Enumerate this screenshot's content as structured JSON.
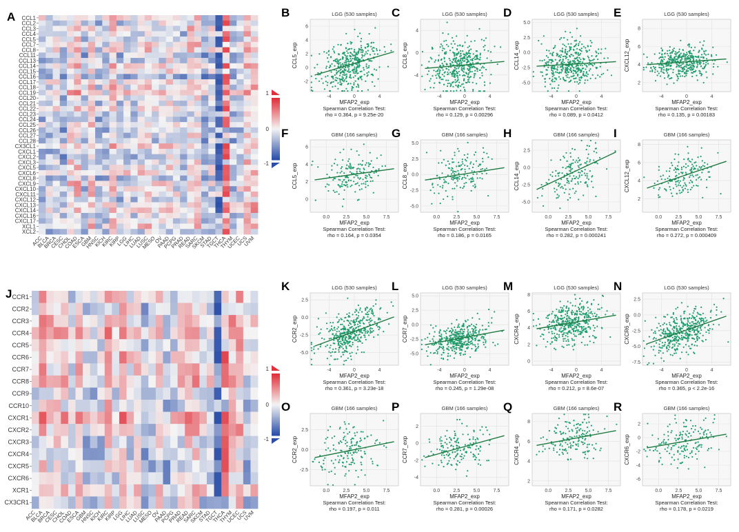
{
  "chart_data": [
    {
      "type": "heatmap",
      "panel": "A",
      "rows": [
        "CCL1",
        "CCL2",
        "CCL3",
        "CCL4",
        "CCL5",
        "CCL7",
        "CCL8",
        "CCL11",
        "CCL13",
        "CCL14",
        "CCL15",
        "CCL16",
        "CCL17",
        "CCL18",
        "CCL19",
        "CCL20",
        "CCL21",
        "CCL22",
        "CCL23",
        "CCL24",
        "CCL25",
        "CCL26",
        "CCL27",
        "CCL28",
        "CX3CL1",
        "CXCL1",
        "CXCL2",
        "CXCL3",
        "CXCL5",
        "CXCL6",
        "CXCL8",
        "CXCL9",
        "CXCL10",
        "CXCL11",
        "CXCL12",
        "CXCL13",
        "CXCL14",
        "CXCL16",
        "CXCL17",
        "XCL1",
        "XCL2"
      ],
      "columns": [
        "ACC",
        "BLCA",
        "BRCA",
        "CESC",
        "CHOL",
        "COAD",
        "ESCA",
        "GBM",
        "HNSC",
        "KICH",
        "KIRC",
        "KIRP",
        "LGG",
        "LIHC",
        "LUAD",
        "LUSC",
        "MESO",
        "OV",
        "PAAD",
        "PCPG",
        "PRAD",
        "READ",
        "SARC",
        "SKCM",
        "STAD",
        "TGCT",
        "THCA",
        "THYM",
        "UCEC",
        "UCS",
        "UVM"
      ],
      "color_range": [
        -1,
        1
      ],
      "legend_ticks": [
        "1",
        "0",
        "-1"
      ]
    },
    {
      "type": "heatmap",
      "panel": "J",
      "rows": [
        "CCR1",
        "CCR2",
        "CCR3",
        "CCR4",
        "CCR5",
        "CCR6",
        "CCR7",
        "CCR8",
        "CCR9",
        "CCR10",
        "CXCR1",
        "CXCR2",
        "CXCR3",
        "CXCR4",
        "CXCR5",
        "CXCR6",
        "XCR1",
        "CX3CR1"
      ],
      "columns": [
        "ACC",
        "BLCA",
        "BRCA",
        "CESC",
        "CHOL",
        "COAD",
        "ESCA",
        "GBM",
        "HNSC",
        "KICH",
        "KIRC",
        "KIRP",
        "LGG",
        "LIHC",
        "LUAD",
        "LUSC",
        "MESO",
        "OV",
        "PAAD",
        "PCPG",
        "PRAD",
        "READ",
        "SARC",
        "SKCM",
        "STAD",
        "TGCT",
        "THCA",
        "THYM",
        "UCEC",
        "UCS",
        "UVM"
      ],
      "color_range": [
        -1,
        1
      ],
      "legend_ticks": [
        "1",
        "0",
        "-1"
      ]
    },
    {
      "type": "scatter",
      "panel": "B",
      "title": "LGG (530 samples)",
      "xlabel": "MFAP2_exp",
      "ylabel": "CCL5_exp",
      "xticks": [
        "-4",
        "0",
        "4"
      ],
      "yticks": [
        "-2",
        "0",
        "2",
        "4",
        "6"
      ],
      "xlim": [
        -7,
        7
      ],
      "ylim": [
        -3.5,
        7
      ],
      "n": 530,
      "slope": 0.27,
      "intercept": 0.6,
      "spread": 1.7,
      "test": "Spearman Correlation Test:",
      "stat": "rho = 0.364, p = 9.25e-20"
    },
    {
      "type": "scatter",
      "panel": "C",
      "title": "LGG (530 samples)",
      "xlabel": "MFAP2_exp",
      "ylabel": "CCL8_exp",
      "xticks": [
        "-4",
        "0",
        "4"
      ],
      "yticks": [
        "-4",
        "0",
        "4"
      ],
      "xlim": [
        -7,
        7
      ],
      "ylim": [
        -7,
        6
      ],
      "n": 530,
      "slope": 0.1,
      "intercept": -2.2,
      "spread": 2.3,
      "test": "Spearman Correlation Test:",
      "stat": "rho = 0.129, p = 0.00296"
    },
    {
      "type": "scatter",
      "panel": "D",
      "title": "LGG (530 samples)",
      "xlabel": "MFAP2_exp",
      "ylabel": "CCL14_exp",
      "xticks": [
        "-4",
        "0",
        "4"
      ],
      "yticks": [
        "-5.0",
        "-2.5",
        "0.0",
        "2.5",
        "5.0"
      ],
      "xlim": [
        -7,
        7
      ],
      "ylim": [
        -6.5,
        5.5
      ],
      "n": 530,
      "slope": 0.06,
      "intercept": -1.9,
      "spread": 2.0,
      "test": "Spearman Correlation Test:",
      "stat": "rho = 0.089, p = 0.0412"
    },
    {
      "type": "scatter",
      "panel": "E",
      "title": "LGG (530 samples)",
      "xlabel": "MFAP2_exp",
      "ylabel": "CXCL12_exp",
      "xticks": [
        "-4",
        "0",
        "4"
      ],
      "yticks": [
        "2",
        "4",
        "6",
        "8"
      ],
      "xlim": [
        -7,
        7
      ],
      "ylim": [
        1,
        9
      ],
      "n": 530,
      "slope": 0.05,
      "intercept": 4.3,
      "spread": 0.9,
      "test": "Spearman Correlation Test:",
      "stat": "rho = 0.135, p = 0.00183"
    },
    {
      "type": "scatter",
      "panel": "F",
      "title": "GBM (166 samples)",
      "xlabel": "MFAP2_exp",
      "ylabel": "CCL5_exp",
      "xticks": [
        "0.0",
        "2.5",
        "5.0",
        "7.5"
      ],
      "yticks": [
        "0",
        "2",
        "4",
        "6"
      ],
      "xlim": [
        -2,
        9
      ],
      "ylim": [
        -1.5,
        6.8
      ],
      "n": 166,
      "slope": 0.13,
      "intercept": 2.4,
      "spread": 1.2,
      "test": "Spearman Correlation Test:",
      "stat": "rho = 0.164, p = 0.0354"
    },
    {
      "type": "scatter",
      "panel": "G",
      "title": "GBM (166 samples)",
      "xlabel": "MFAP2_exp",
      "ylabel": "CCL8_exp",
      "xticks": [
        "0.0",
        "2.5",
        "5.0",
        "7.5"
      ],
      "yticks": [
        "-5.0",
        "-2.5",
        "0.0",
        "2.5",
        "5.0"
      ],
      "xlim": [
        -2,
        9
      ],
      "ylim": [
        -6,
        5.5
      ],
      "n": 166,
      "slope": 0.2,
      "intercept": -0.6,
      "spread": 2.0,
      "test": "Spearman Correlation Test:",
      "stat": "rho = 0.186, p = 0.0165"
    },
    {
      "type": "scatter",
      "panel": "H",
      "title": "GBM (166 samples)",
      "xlabel": "MFAP2_exp",
      "ylabel": "CCL14_exp",
      "xticks": [
        "0.0",
        "2.5",
        "5.0",
        "7.5"
      ],
      "yticks": [
        "-5.0",
        "-2.5",
        "0.0",
        "2.5"
      ],
      "xlim": [
        -2,
        9
      ],
      "ylim": [
        -6.5,
        4
      ],
      "n": 166,
      "slope": 0.55,
      "intercept": -2.4,
      "spread": 1.8,
      "test": "Spearman Correlation Test:",
      "stat": "rho = 0.282, p = 0.000241"
    },
    {
      "type": "scatter",
      "panel": "I",
      "title": "GBM (166 samples)",
      "xlabel": "MFAP2_exp",
      "ylabel": "CXCL12_exp",
      "xticks": [
        "0.0",
        "2.5",
        "5.0",
        "7.5"
      ],
      "yticks": [
        "2",
        "4",
        "6",
        "8"
      ],
      "xlim": [
        -2,
        9
      ],
      "ylim": [
        0.5,
        8.5
      ],
      "n": 166,
      "slope": 0.3,
      "intercept": 3.6,
      "spread": 1.1,
      "test": "Spearman Correlation Test:",
      "stat": "rho = 0.272, p = 0.000409"
    },
    {
      "type": "scatter",
      "panel": "K",
      "title": "LGG (530 samples)",
      "xlabel": "MFAP2_exp",
      "ylabel": "CCR2_exp",
      "xticks": [
        "-4",
        "0",
        "4"
      ],
      "yticks": [
        "-5.0",
        "-2.5",
        "0.0",
        "2.5"
      ],
      "xlim": [
        -7,
        7
      ],
      "ylim": [
        -6.8,
        3.5
      ],
      "n": 530,
      "slope": 0.33,
      "intercept": -2.0,
      "spread": 1.6,
      "test": "Spearman Correlation Test:",
      "stat": "rho = 0.361, p = 3.23e-18"
    },
    {
      "type": "scatter",
      "panel": "L",
      "title": "LGG (530 samples)",
      "xlabel": "MFAP2_exp",
      "ylabel": "CCR7_exp",
      "xticks": [
        "-4",
        "0",
        "4"
      ],
      "yticks": [
        "-5.0",
        "-2.5",
        "0.0",
        "2.5",
        "5.0"
      ],
      "xlim": [
        -7,
        7
      ],
      "ylim": [
        -7,
        5.5
      ],
      "n": 530,
      "slope": 0.2,
      "intercept": -2.2,
      "spread": 1.4,
      "test": "Spearman Correlation Test:",
      "stat": "rho = 0.245, p = 1.29e-08"
    },
    {
      "type": "scatter",
      "panel": "M",
      "title": "LGG (530 samples)",
      "xlabel": "MFAP2_exp",
      "ylabel": "CXCR4_exp",
      "xticks": [
        "-4",
        "0",
        "4"
      ],
      "yticks": [
        "0",
        "2",
        "4",
        "6",
        "8"
      ],
      "xlim": [
        -7,
        7
      ],
      "ylim": [
        -0.5,
        8.2
      ],
      "n": 530,
      "slope": 0.13,
      "intercept": 4.7,
      "spread": 1.3,
      "test": "Spearman Correlation Test:",
      "stat": "rho = 0.212, p = 8.6e-07"
    },
    {
      "type": "scatter",
      "panel": "N",
      "title": "LGG (530 samples)",
      "xlabel": "MFAP2_exp",
      "ylabel": "CXCR6_exp",
      "xticks": [
        "-4",
        "0",
        "4"
      ],
      "yticks": [
        "-7.5",
        "-5.0",
        "-2.5",
        "0.0",
        "2.5"
      ],
      "xlim": [
        -7,
        7
      ],
      "ylim": [
        -8,
        3.5
      ],
      "n": 530,
      "slope": 0.35,
      "intercept": -2.4,
      "spread": 1.6,
      "test": "Spearman Correlation Test:",
      "stat": "rho = 0.365, p < 2.2e-16"
    },
    {
      "type": "scatter",
      "panel": "O",
      "title": "GBM (166 samples)",
      "xlabel": "MFAP2_exp",
      "ylabel": "CCR2_exp",
      "xticks": [
        "0.0",
        "2.5",
        "5.0",
        "7.5"
      ],
      "yticks": [
        "-2.5",
        "0.0",
        "2.5"
      ],
      "xlim": [
        -2,
        9
      ],
      "ylim": [
        -4.5,
        4.5
      ],
      "n": 166,
      "slope": 0.2,
      "intercept": -0.7,
      "spread": 1.5,
      "test": "Spearman Correlation Test:",
      "stat": "rho = 0.197, p = 0.011"
    },
    {
      "type": "scatter",
      "panel": "P",
      "title": "GBM (166 samples)",
      "xlabel": "MFAP2_exp",
      "ylabel": "CCR7_exp",
      "xticks": [
        "0.0",
        "2.5",
        "5.0",
        "7.5"
      ],
      "yticks": [
        "-4",
        "-2",
        "0",
        "2"
      ],
      "xlim": [
        -2,
        9
      ],
      "ylim": [
        -5,
        3.5
      ],
      "n": 166,
      "slope": 0.26,
      "intercept": -1.3,
      "spread": 1.2,
      "test": "Spearman Correlation Test:",
      "stat": "rho = 0.281, p = 0.00026"
    },
    {
      "type": "scatter",
      "panel": "Q",
      "title": "GBM (166 samples)",
      "xlabel": "MFAP2_exp",
      "ylabel": "CXCR4_exp",
      "xticks": [
        "0.0",
        "2.5",
        "5.0",
        "7.5"
      ],
      "yticks": [
        "2",
        "4",
        "6",
        "8"
      ],
      "xlim": [
        -2,
        9
      ],
      "ylim": [
        1.5,
        8.8
      ],
      "n": 166,
      "slope": 0.15,
      "intercept": 5.8,
      "spread": 1.1,
      "test": "Spearman Correlation Test:",
      "stat": "rho = 0.171, p = 0.0282"
    },
    {
      "type": "scatter",
      "panel": "R",
      "title": "GBM (166 samples)",
      "xlabel": "MFAP2_exp",
      "ylabel": "CXCR6_exp",
      "xticks": [
        "0.0",
        "2.5",
        "5.0",
        "7.5"
      ],
      "yticks": [
        "-6",
        "-4",
        "-2",
        "0",
        "2"
      ],
      "xlim": [
        -2,
        9
      ],
      "ylim": [
        -7,
        3.5
      ],
      "n": 166,
      "slope": 0.2,
      "intercept": -1.2,
      "spread": 1.6,
      "test": "Spearman Correlation Test:",
      "stat": "rho = 0.178, p = 0.0219"
    }
  ],
  "colors": {
    "positive": "#e0303a",
    "negative": "#2b4fa8",
    "neutral": "#f4f4f4",
    "point": "#1f9d6e",
    "line": "#1e7a40",
    "panel_bg": "#f7f7f7",
    "grid": "#e2e2e2"
  }
}
